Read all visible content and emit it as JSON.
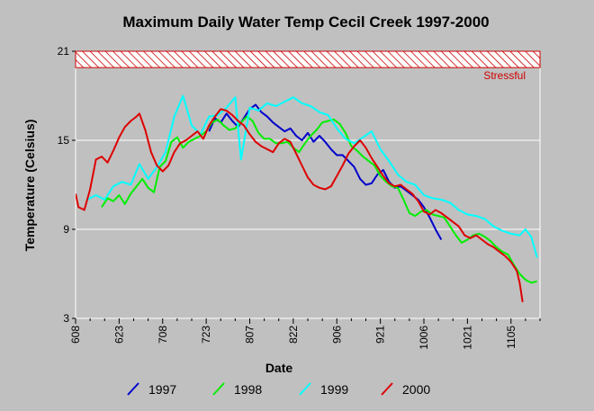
{
  "chart_data": {
    "type": "line",
    "title": "Maximum Daily Water Temp Cecil Creek 1997-2000",
    "xlabel": "Date",
    "ylabel": "Temperature (Celsius)",
    "x_tick_labels": [
      "608",
      "623",
      "708",
      "723",
      "807",
      "822",
      "906",
      "921",
      "1006",
      "1021",
      "1105"
    ],
    "y_ticks": [
      3,
      9,
      15,
      21
    ],
    "ylim": [
      3,
      21
    ],
    "xlim_days": [
      0,
      160
    ],
    "x_unit": "days since June 8 (tick labels are MDD dates)",
    "grid": "horizontal",
    "legend_position": "bottom",
    "threshold": {
      "label": "Stressful",
      "from": 19.9,
      "to": 21,
      "color": "#cc0000"
    },
    "series": [
      {
        "name": "1997",
        "color": "#0000cc",
        "points": [
          [
            46,
            15.6
          ],
          [
            48,
            16.5
          ],
          [
            50,
            16.2
          ],
          [
            52,
            16.8
          ],
          [
            54,
            16.3
          ],
          [
            56,
            15.9
          ],
          [
            58,
            16.5
          ],
          [
            60,
            17.1
          ],
          [
            62,
            17.4
          ],
          [
            64,
            16.9
          ],
          [
            66,
            16.6
          ],
          [
            68,
            16.2
          ],
          [
            70,
            15.9
          ],
          [
            72,
            15.6
          ],
          [
            74,
            15.8
          ],
          [
            76,
            15.3
          ],
          [
            78,
            15.0
          ],
          [
            80,
            15.5
          ],
          [
            82,
            14.9
          ],
          [
            84,
            15.3
          ],
          [
            86,
            14.9
          ],
          [
            88,
            14.4
          ],
          [
            90,
            14.0
          ],
          [
            92,
            14.0
          ],
          [
            94,
            13.6
          ],
          [
            96,
            13.2
          ],
          [
            98,
            12.4
          ],
          [
            100,
            12.0
          ],
          [
            102,
            12.1
          ],
          [
            104,
            12.7
          ],
          [
            106,
            13.0
          ],
          [
            108,
            12.2
          ],
          [
            110,
            11.8
          ],
          [
            112,
            11.9
          ],
          [
            114,
            11.6
          ],
          [
            116,
            11.3
          ],
          [
            118,
            11.0
          ],
          [
            120,
            10.5
          ],
          [
            122,
            9.8
          ],
          [
            124,
            9.0
          ],
          [
            126,
            8.3
          ]
        ]
      },
      {
        "name": "1998",
        "color": "#00ee00",
        "points": [
          [
            9,
            10.5
          ],
          [
            11,
            11.1
          ],
          [
            13,
            10.9
          ],
          [
            15,
            11.3
          ],
          [
            17,
            10.7
          ],
          [
            19,
            11.4
          ],
          [
            21,
            11.9
          ],
          [
            23,
            12.4
          ],
          [
            25,
            11.8
          ],
          [
            27,
            11.5
          ],
          [
            29,
            13.2
          ],
          [
            31,
            13.6
          ],
          [
            33,
            14.9
          ],
          [
            35,
            15.2
          ],
          [
            37,
            14.5
          ],
          [
            39,
            14.9
          ],
          [
            41,
            15.1
          ],
          [
            43,
            15.3
          ],
          [
            45,
            15.6
          ],
          [
            47,
            16.2
          ],
          [
            49,
            16.4
          ],
          [
            51,
            16.0
          ],
          [
            53,
            15.7
          ],
          [
            55,
            15.8
          ],
          [
            57,
            16.2
          ],
          [
            59,
            16.6
          ],
          [
            61,
            16.3
          ],
          [
            63,
            15.5
          ],
          [
            65,
            15.1
          ],
          [
            67,
            15.1
          ],
          [
            69,
            14.8
          ],
          [
            71,
            14.8
          ],
          [
            73,
            14.9
          ],
          [
            75,
            14.5
          ],
          [
            77,
            14.2
          ],
          [
            79,
            14.8
          ],
          [
            81,
            15.3
          ],
          [
            83,
            15.7
          ],
          [
            85,
            16.2
          ],
          [
            87,
            16.3
          ],
          [
            89,
            16.4
          ],
          [
            91,
            16.1
          ],
          [
            93,
            15.5
          ],
          [
            95,
            14.6
          ],
          [
            97,
            14.3
          ],
          [
            99,
            13.9
          ],
          [
            101,
            13.6
          ],
          [
            103,
            13.3
          ],
          [
            105,
            12.6
          ],
          [
            107,
            12.2
          ],
          [
            109,
            11.9
          ],
          [
            111,
            11.8
          ],
          [
            113,
            11.0
          ],
          [
            115,
            10.1
          ],
          [
            117,
            9.9
          ],
          [
            119,
            10.2
          ],
          [
            121,
            10.3
          ],
          [
            123,
            10.0
          ],
          [
            125,
            9.9
          ],
          [
            127,
            9.8
          ],
          [
            129,
            9.2
          ],
          [
            131,
            8.6
          ],
          [
            133,
            8.1
          ],
          [
            135,
            8.3
          ],
          [
            137,
            8.6
          ],
          [
            139,
            8.7
          ],
          [
            141,
            8.5
          ],
          [
            143,
            8.2
          ],
          [
            145,
            7.8
          ],
          [
            147,
            7.5
          ],
          [
            149,
            7.3
          ],
          [
            151,
            6.6
          ],
          [
            153,
            6.0
          ],
          [
            155,
            5.6
          ],
          [
            157,
            5.4
          ],
          [
            159,
            5.5
          ]
        ]
      },
      {
        "name": "1999",
        "color": "#00ffff",
        "points": [
          [
            4,
            11.0
          ],
          [
            7,
            11.3
          ],
          [
            10,
            11.0
          ],
          [
            13,
            11.9
          ],
          [
            16,
            12.2
          ],
          [
            19,
            12.0
          ],
          [
            22,
            13.4
          ],
          [
            25,
            12.4
          ],
          [
            28,
            13.2
          ],
          [
            31,
            14.2
          ],
          [
            34,
            16.6
          ],
          [
            37,
            18.0
          ],
          [
            40,
            16.0
          ],
          [
            43,
            15.4
          ],
          [
            46,
            16.6
          ],
          [
            49,
            16.7
          ],
          [
            52,
            17.2
          ],
          [
            55,
            17.9
          ],
          [
            57,
            13.7
          ],
          [
            60,
            17.2
          ],
          [
            63,
            17.0
          ],
          [
            66,
            17.5
          ],
          [
            69,
            17.3
          ],
          [
            72,
            17.6
          ],
          [
            75,
            17.9
          ],
          [
            78,
            17.5
          ],
          [
            81,
            17.3
          ],
          [
            84,
            16.9
          ],
          [
            87,
            16.7
          ],
          [
            90,
            15.8
          ],
          [
            93,
            15.1
          ],
          [
            96,
            14.8
          ],
          [
            99,
            15.2
          ],
          [
            102,
            15.6
          ],
          [
            105,
            14.4
          ],
          [
            108,
            13.6
          ],
          [
            111,
            12.7
          ],
          [
            114,
            12.2
          ],
          [
            117,
            12.0
          ],
          [
            120,
            11.3
          ],
          [
            123,
            11.1
          ],
          [
            126,
            11.0
          ],
          [
            129,
            10.8
          ],
          [
            132,
            10.3
          ],
          [
            135,
            10.0
          ],
          [
            138,
            9.9
          ],
          [
            141,
            9.7
          ],
          [
            144,
            9.2
          ],
          [
            147,
            8.9
          ],
          [
            150,
            8.7
          ],
          [
            153,
            8.6
          ],
          [
            155,
            9.0
          ],
          [
            157,
            8.5
          ],
          [
            159,
            7.1
          ]
        ]
      },
      {
        "name": "2000",
        "color": "#dd0000",
        "points": [
          [
            0,
            11.4
          ],
          [
            1,
            10.5
          ],
          [
            2,
            10.4
          ],
          [
            3,
            10.3
          ],
          [
            5,
            11.7
          ],
          [
            7,
            13.7
          ],
          [
            9,
            13.9
          ],
          [
            11,
            13.5
          ],
          [
            13,
            14.3
          ],
          [
            15,
            15.2
          ],
          [
            17,
            15.9
          ],
          [
            19,
            16.3
          ],
          [
            21,
            16.6
          ],
          [
            22,
            16.8
          ],
          [
            24,
            15.7
          ],
          [
            26,
            14.2
          ],
          [
            28,
            13.3
          ],
          [
            30,
            12.9
          ],
          [
            32,
            13.3
          ],
          [
            34,
            14.2
          ],
          [
            36,
            14.8
          ],
          [
            38,
            15.0
          ],
          [
            40,
            15.3
          ],
          [
            42,
            15.6
          ],
          [
            44,
            15.1
          ],
          [
            46,
            16.0
          ],
          [
            48,
            16.6
          ],
          [
            50,
            17.1
          ],
          [
            52,
            17.0
          ],
          [
            54,
            16.7
          ],
          [
            56,
            16.3
          ],
          [
            58,
            16.0
          ],
          [
            60,
            15.4
          ],
          [
            62,
            14.9
          ],
          [
            64,
            14.6
          ],
          [
            66,
            14.4
          ],
          [
            68,
            14.2
          ],
          [
            70,
            14.8
          ],
          [
            72,
            15.1
          ],
          [
            74,
            14.9
          ],
          [
            76,
            14.1
          ],
          [
            78,
            13.3
          ],
          [
            80,
            12.5
          ],
          [
            82,
            12.0
          ],
          [
            84,
            11.8
          ],
          [
            86,
            11.7
          ],
          [
            88,
            11.9
          ],
          [
            90,
            12.6
          ],
          [
            92,
            13.3
          ],
          [
            94,
            14.1
          ],
          [
            96,
            14.6
          ],
          [
            98,
            15.0
          ],
          [
            100,
            14.5
          ],
          [
            102,
            13.8
          ],
          [
            104,
            13.2
          ],
          [
            106,
            12.6
          ],
          [
            108,
            12.1
          ],
          [
            110,
            11.9
          ],
          [
            112,
            12.0
          ],
          [
            114,
            11.7
          ],
          [
            116,
            11.4
          ],
          [
            118,
            10.9
          ],
          [
            120,
            10.2
          ],
          [
            122,
            10.0
          ],
          [
            124,
            10.3
          ],
          [
            126,
            10.1
          ],
          [
            128,
            9.8
          ],
          [
            130,
            9.5
          ],
          [
            132,
            9.2
          ],
          [
            134,
            8.6
          ],
          [
            136,
            8.4
          ],
          [
            138,
            8.6
          ],
          [
            140,
            8.3
          ],
          [
            142,
            8.0
          ],
          [
            144,
            7.8
          ],
          [
            146,
            7.5
          ],
          [
            148,
            7.2
          ],
          [
            150,
            6.8
          ],
          [
            152,
            6.2
          ],
          [
            153,
            5.4
          ],
          [
            154,
            4.1
          ]
        ]
      }
    ]
  }
}
